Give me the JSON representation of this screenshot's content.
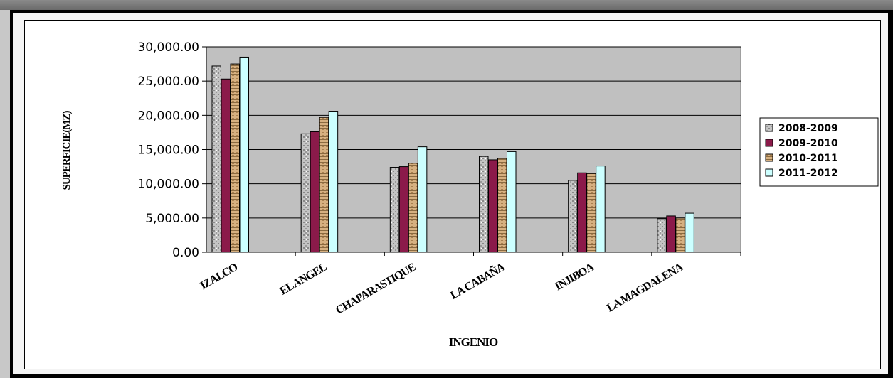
{
  "chart_data": {
    "type": "bar",
    "title": "",
    "xlabel": "INGENIO",
    "ylabel": "SUPERFICIE(MZ)",
    "ylim": [
      0,
      30000
    ],
    "yticks": [
      0,
      5000,
      10000,
      15000,
      20000,
      25000,
      30000
    ],
    "ytick_labels": [
      "0.00",
      "5,000.00",
      "10,000.00",
      "15,000.00",
      "20,000.00",
      "25,000.00",
      "30,000.00"
    ],
    "grid": true,
    "legend_position": "right",
    "categories": [
      "IZALCO",
      "EL ANGEL",
      "CHAPARASTIQUE",
      "LA CABAÑA",
      "INJIBOA",
      "LA MAGDALENA"
    ],
    "series": [
      {
        "name": "2008-2009",
        "color": "#b8b8b8",
        "values": [
          27200,
          17300,
          12400,
          14000,
          10500,
          4900
        ]
      },
      {
        "name": "2009-2010",
        "color": "#8b1a4a",
        "values": [
          25300,
          17600,
          12500,
          13500,
          11600,
          5300
        ]
      },
      {
        "name": "2010-2011",
        "color": "#c8a070",
        "values": [
          27500,
          19700,
          13000,
          13700,
          11500,
          5000
        ]
      },
      {
        "name": "2011-2012",
        "color": "#ccffff",
        "values": [
          28500,
          20600,
          15400,
          14700,
          12600,
          5700
        ]
      }
    ]
  }
}
